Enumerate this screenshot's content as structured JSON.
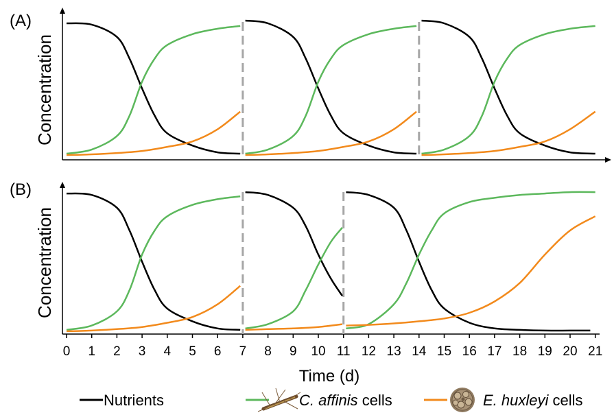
{
  "chart_data": [
    {
      "panel": "(A)",
      "type": "line",
      "ylabel": "Concentration",
      "xlim": [
        0,
        21
      ],
      "ylim": [
        0,
        1
      ],
      "transfers_at": [
        7,
        14
      ],
      "series": [
        {
          "name": "Nutrients",
          "color": "#000000",
          "segments": [
            {
              "x": [
                0,
                1,
                2,
                2.5,
                3,
                3.5,
                4,
                5,
                6,
                6.9
              ],
              "y": [
                0.98,
                0.97,
                0.88,
                0.72,
                0.5,
                0.3,
                0.17,
                0.08,
                0.03,
                0.02
              ]
            },
            {
              "x": [
                7.1,
                8,
                9,
                9.5,
                10,
                10.5,
                11,
                12,
                13,
                13.9
              ],
              "y": [
                1.0,
                0.98,
                0.88,
                0.72,
                0.5,
                0.3,
                0.17,
                0.08,
                0.03,
                0.02
              ]
            },
            {
              "x": [
                14.1,
                15,
                16,
                16.5,
                17,
                17.5,
                18,
                19,
                20,
                21
              ],
              "y": [
                1.0,
                0.98,
                0.88,
                0.72,
                0.5,
                0.3,
                0.17,
                0.08,
                0.03,
                0.02
              ]
            }
          ]
        },
        {
          "name": "C. affinis cells",
          "color": "#5cb85c",
          "segments": [
            {
              "x": [
                0,
                1,
                2,
                2.5,
                3,
                3.5,
                4,
                5,
                6,
                6.9
              ],
              "y": [
                0.02,
                0.05,
                0.15,
                0.3,
                0.55,
                0.72,
                0.82,
                0.9,
                0.94,
                0.96
              ]
            },
            {
              "x": [
                7.1,
                8,
                9,
                9.5,
                10,
                10.5,
                11,
                12,
                13,
                13.9
              ],
              "y": [
                0.02,
                0.05,
                0.15,
                0.3,
                0.55,
                0.72,
                0.82,
                0.9,
                0.94,
                0.96
              ]
            },
            {
              "x": [
                14.1,
                15,
                16,
                16.5,
                17,
                17.5,
                18,
                19,
                20,
                21
              ],
              "y": [
                0.02,
                0.05,
                0.15,
                0.3,
                0.55,
                0.72,
                0.82,
                0.9,
                0.94,
                0.96
              ]
            }
          ]
        },
        {
          "name": "E. huxleyi cells",
          "color": "#f28a1c",
          "segments": [
            {
              "x": [
                0,
                1,
                2,
                3,
                4,
                5,
                6,
                6.9
              ],
              "y": [
                0.01,
                0.015,
                0.025,
                0.04,
                0.07,
                0.11,
                0.2,
                0.33
              ]
            },
            {
              "x": [
                7.1,
                8,
                9,
                10,
                11,
                12,
                13,
                13.9
              ],
              "y": [
                0.01,
                0.015,
                0.025,
                0.04,
                0.07,
                0.11,
                0.2,
                0.33
              ]
            },
            {
              "x": [
                14.1,
                15,
                16,
                17,
                18,
                19,
                20,
                21
              ],
              "y": [
                0.01,
                0.015,
                0.025,
                0.04,
                0.07,
                0.11,
                0.2,
                0.33
              ]
            }
          ]
        }
      ]
    },
    {
      "panel": "(B)",
      "type": "line",
      "ylabel": "Concentration",
      "xlabel": "Time (d)",
      "xlim": [
        0,
        21
      ],
      "ylim": [
        0,
        1
      ],
      "xticks": [
        0,
        1,
        2,
        3,
        4,
        5,
        6,
        7,
        8,
        9,
        10,
        11,
        12,
        13,
        14,
        15,
        16,
        17,
        18,
        19,
        20,
        21
      ],
      "transfers_at": [
        7,
        11
      ],
      "series": [
        {
          "name": "Nutrients",
          "color": "#000000",
          "segments": [
            {
              "x": [
                0,
                1,
                2,
                2.5,
                3,
                3.5,
                4,
                5,
                6,
                6.9
              ],
              "y": [
                0.98,
                0.97,
                0.88,
                0.72,
                0.5,
                0.3,
                0.17,
                0.08,
                0.03,
                0.02
              ]
            },
            {
              "x": [
                7.1,
                8,
                9,
                9.5,
                10,
                10.5,
                10.95
              ],
              "y": [
                0.99,
                0.97,
                0.88,
                0.75,
                0.55,
                0.38,
                0.26
              ]
            },
            {
              "x": [
                11.1,
                12,
                13,
                13.5,
                14,
                14.5,
                15,
                16,
                17,
                18,
                19,
                20,
                20.8
              ],
              "y": [
                0.99,
                0.97,
                0.88,
                0.72,
                0.5,
                0.3,
                0.17,
                0.07,
                0.03,
                0.02,
                0.015,
                0.015,
                0.015
              ]
            }
          ]
        },
        {
          "name": "C. affinis cells",
          "color": "#5cb85c",
          "segments": [
            {
              "x": [
                0,
                1,
                2,
                2.5,
                3,
                3.5,
                4,
                5,
                6,
                6.9
              ],
              "y": [
                0.02,
                0.05,
                0.15,
                0.3,
                0.55,
                0.72,
                0.82,
                0.9,
                0.94,
                0.96
              ]
            },
            {
              "x": [
                7.1,
                8,
                9,
                9.5,
                10,
                10.5,
                10.95
              ],
              "y": [
                0.03,
                0.06,
                0.15,
                0.3,
                0.48,
                0.64,
                0.74
              ]
            },
            {
              "x": [
                11.1,
                12,
                13,
                13.5,
                14,
                14.5,
                15,
                16,
                17,
                18,
                19,
                20,
                21
              ],
              "y": [
                0.03,
                0.06,
                0.2,
                0.35,
                0.55,
                0.72,
                0.84,
                0.92,
                0.95,
                0.97,
                0.98,
                0.99,
                0.99
              ]
            }
          ]
        },
        {
          "name": "E. huxleyi cells",
          "color": "#f28a1c",
          "segments": [
            {
              "x": [
                0,
                1,
                2,
                3,
                4,
                5,
                6,
                6.9
              ],
              "y": [
                0.01,
                0.015,
                0.025,
                0.04,
                0.07,
                0.11,
                0.2,
                0.33
              ]
            },
            {
              "x": [
                7.1,
                8,
                9,
                10,
                10.95
              ],
              "y": [
                0.02,
                0.025,
                0.03,
                0.04,
                0.06
              ]
            },
            {
              "x": [
                11.1,
                12,
                13,
                14,
                15,
                16,
                17,
                18,
                19,
                20,
                21
              ],
              "y": [
                0.05,
                0.055,
                0.065,
                0.08,
                0.1,
                0.14,
                0.22,
                0.35,
                0.55,
                0.72,
                0.82
              ]
            }
          ]
        }
      ]
    }
  ],
  "legend": {
    "items": [
      {
        "label": "Nutrients",
        "color": "#000000"
      },
      {
        "label": "C. affinis",
        "suffix": " cells",
        "color": "#5cb85c",
        "icon": "diatom-chain-icon"
      },
      {
        "label": "E. huxleyi",
        "suffix": " cells",
        "color": "#f28a1c",
        "icon": "coccolithophore-icon"
      }
    ]
  }
}
